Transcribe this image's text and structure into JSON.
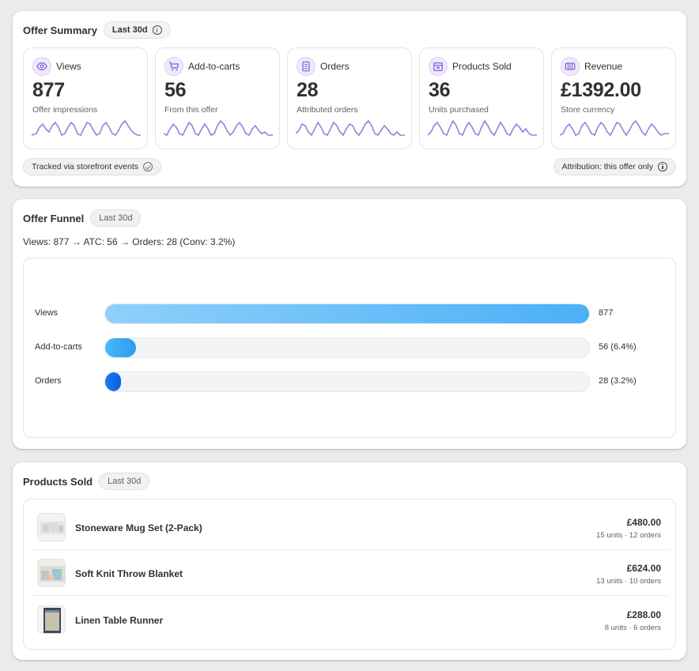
{
  "summary": {
    "title": "Offer Summary",
    "range": "Last 30d",
    "metrics": [
      {
        "label": "Views",
        "value": "877",
        "sub": "Offer impressions",
        "icon": "eye-icon"
      },
      {
        "label": "Add-to-carts",
        "value": "56",
        "sub": "From this offer",
        "icon": "cart-icon"
      },
      {
        "label": "Orders",
        "value": "28",
        "sub": "Attributed orders",
        "icon": "receipt-icon"
      },
      {
        "label": "Products Sold",
        "value": "36",
        "sub": "Units purchased",
        "icon": "box-icon"
      },
      {
        "label": "Revenue",
        "value": "£1392.00",
        "sub": "Store currency",
        "icon": "cash-icon"
      }
    ],
    "footer_left": "Tracked via storefront events",
    "footer_right": "Attribution: this offer only"
  },
  "funnel": {
    "title": "Offer Funnel",
    "range": "Last 30d",
    "summary_text": "Views: 877 → ATC: 56 → Orders: 28 (Conv: 3.2%)",
    "rows": [
      {
        "label": "Views",
        "value_text": "877",
        "fraction": 1.0,
        "color_from": "#8fd0fb",
        "color_to": "#4ab0f7"
      },
      {
        "label": "Add-to-carts",
        "value_text": "56 (6.4%)",
        "fraction": 0.064,
        "color_from": "#4ab8f8",
        "color_to": "#2a9cf2"
      },
      {
        "label": "Orders",
        "value_text": "28 (3.2%)",
        "fraction": 0.032,
        "color_from": "#1a7df0",
        "color_to": "#0a5ee0"
      }
    ]
  },
  "products": {
    "title": "Products Sold",
    "range": "Last 30d",
    "items": [
      {
        "name": "Stoneware Mug Set (2-Pack)",
        "price": "£480.00",
        "meta": "15 units · 12 orders"
      },
      {
        "name": "Soft Knit Throw Blanket",
        "price": "£624.00",
        "meta": "13 units · 10 orders"
      },
      {
        "name": "Linen Table Runner",
        "price": "£288.00",
        "meta": "8 units · 6 orders"
      }
    ]
  },
  "colors": {
    "accent_purple": "#9b7fe0",
    "icon_purple": "#7a5ad6"
  }
}
